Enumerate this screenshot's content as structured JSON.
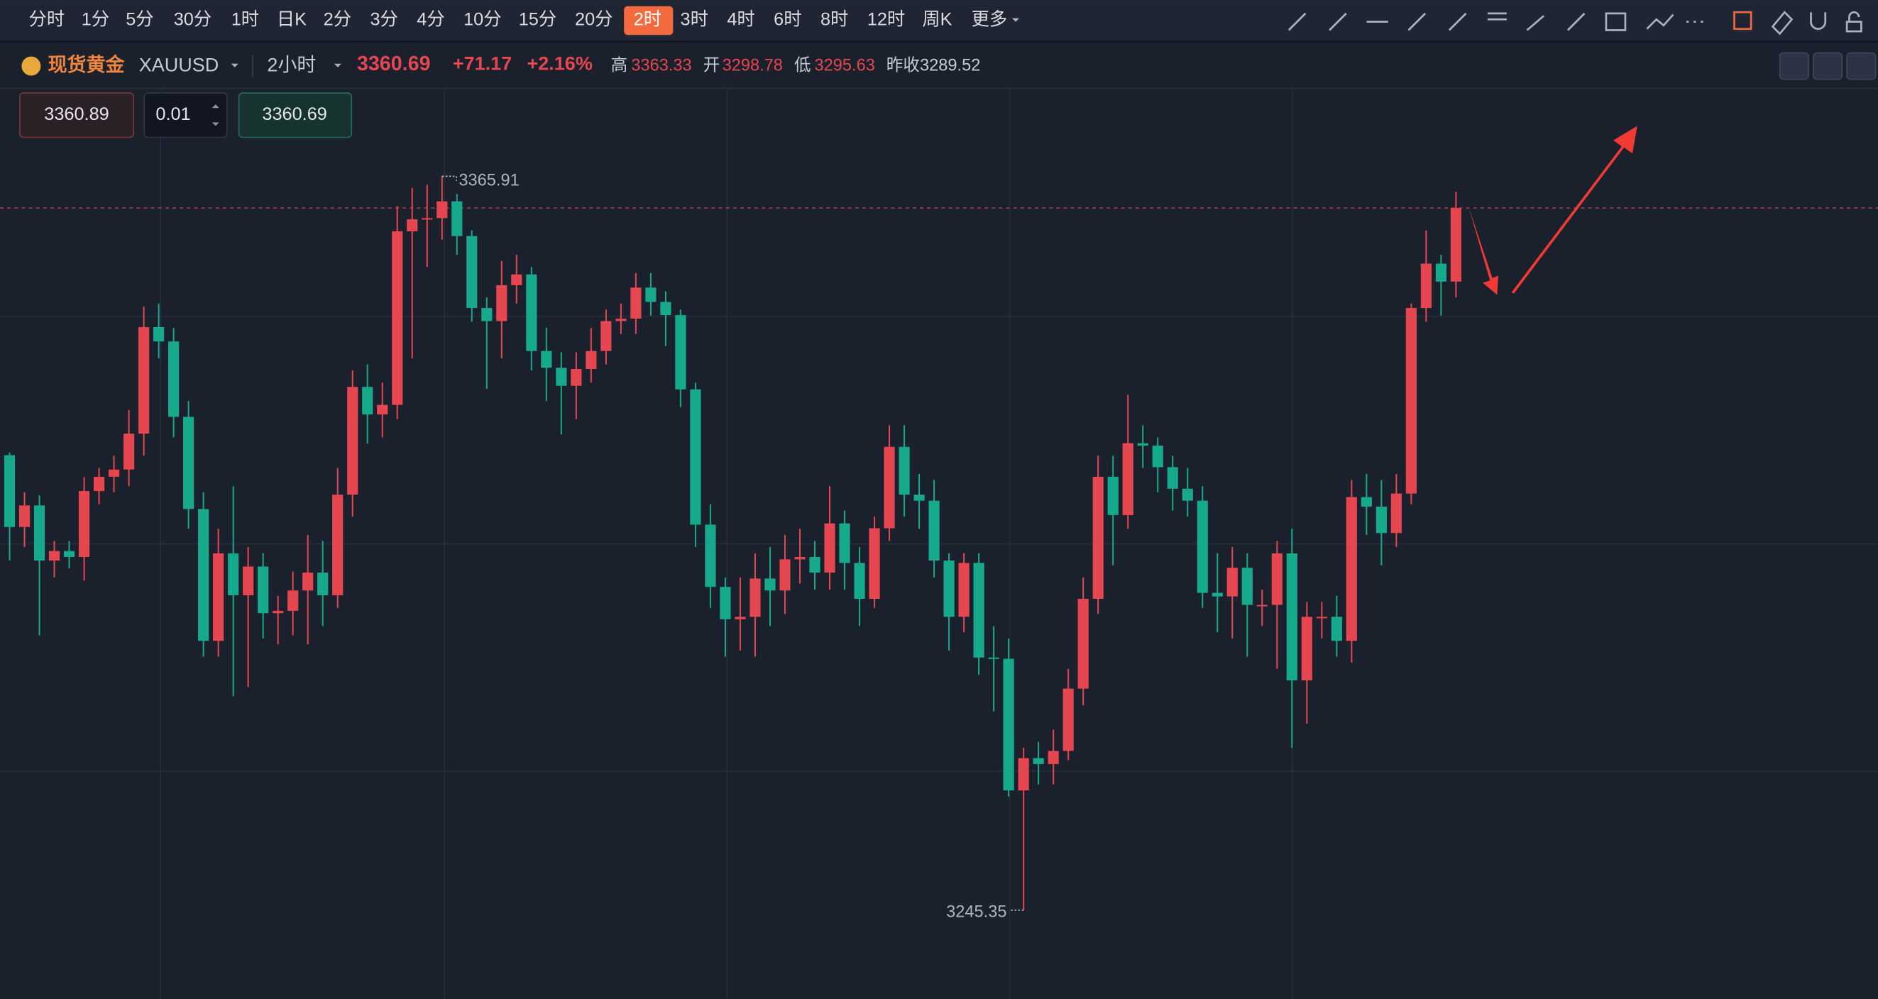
{
  "toolbar": {
    "intervals": [
      "分时",
      "1分",
      "5分",
      "30分",
      "1时",
      "日K",
      "2分",
      "3分",
      "4分",
      "10分",
      "15分",
      "20分",
      "2时",
      "3时",
      "4时",
      "6时",
      "8时",
      "12时",
      "周K"
    ],
    "active": 12,
    "more": "更多"
  },
  "header": {
    "name": "现货黄金",
    "symbol": "XAUUSD",
    "period": "2小时",
    "price": "3360.69",
    "change": "+71.17",
    "change_pct": "+2.16%",
    "high_label": "高",
    "high": "3363.33",
    "open_label": "开",
    "open": "3298.78",
    "low_label": "低",
    "low": "3295.63",
    "prev_label": "昨收",
    "prev": "3289.52"
  },
  "order": {
    "sell": "3360.89",
    "lots": "0.01",
    "buy": "3360.69"
  },
  "chart_data": {
    "type": "candlestick",
    "up_color": "#e5464f",
    "down_color": "#17a98b",
    "ylim": [
      3230.8,
      3380.46
    ],
    "open": [
      3320.09,
      3308.29,
      3311.83,
      3302.78,
      3304.35,
      3303.37,
      3314.19,
      3316.55,
      3317.73,
      3323.63,
      3341.13,
      3338.77,
      3326.38,
      3311.24,
      3289.6,
      3303.96,
      3297.08,
      3301.8,
      3294.13,
      3294.52,
      3297.86,
      3300.81,
      3297.08,
      3313.6,
      3331.3,
      3326.77,
      3328.35,
      3356.86,
      3358.83,
      3359.03,
      3361.78,
      3356.08,
      3344.27,
      3342.11,
      3348.01,
      3349.78,
      3337.2,
      3334.44,
      3331.49,
      3334.25,
      3337.2,
      3342.11,
      3342.51,
      3347.62,
      3345.26,
      3343.1,
      3330.9,
      3308.68,
      3298.45,
      3293.14,
      3293.54,
      3299.83,
      3297.86,
      3302.98,
      3303.37,
      3300.81,
      3308.88,
      3302.39,
      3296.49,
      3308.09,
      3321.46,
      3313.6,
      3312.61,
      3302.78,
      3293.54,
      3302.39,
      3286.85,
      3286.65,
      3265.02,
      3270.33,
      3269.35,
      3271.51,
      3281.74,
      3296.49,
      3316.55,
      3310.25,
      3322.05,
      3321.66,
      3318.12,
      3314.58,
      3312.61,
      3297.47,
      3296.88,
      3301.6,
      3295.5,
      3295.5,
      3303.96,
      3283.11,
      3293.54,
      3293.54,
      3289.6,
      3313.2,
      3311.63,
      3307.3,
      3313.79,
      3344.27,
      3351.55,
      3348.6
    ],
    "high": [
      3320.5,
      3314.0,
      3313.5,
      3306.0,
      3306.0,
      3316.5,
      3318.0,
      3320.0,
      3327.5,
      3344.5,
      3345.0,
      3341.0,
      3329.0,
      3314.0,
      3308.0,
      3315.0,
      3305.0,
      3304.0,
      3297.0,
      3301.0,
      3307.0,
      3306.0,
      3318.0,
      3334.0,
      3335.0,
      3332.0,
      3361.0,
      3364.0,
      3364.5,
      3365.91,
      3363.0,
      3357.0,
      3346.0,
      3352.0,
      3353.0,
      3351.0,
      3341.0,
      3337.0,
      3337.0,
      3341.0,
      3344.0,
      3345.0,
      3350.0,
      3350.0,
      3347.0,
      3344.0,
      3332.0,
      3312.0,
      3300.0,
      3300.0,
      3304.0,
      3305.0,
      3307.0,
      3308.0,
      3306.0,
      3315.0,
      3311.0,
      3305.0,
      3310.0,
      3325.0,
      3325.0,
      3317.0,
      3316.0,
      3304.0,
      3304.0,
      3304.0,
      3292.0,
      3290.0,
      3272.0,
      3273.0,
      3275.0,
      3285.0,
      3300.0,
      3320.0,
      3320.0,
      3330.0,
      3325.0,
      3323.0,
      3320.0,
      3318.0,
      3315.0,
      3304.0,
      3305.0,
      3304.0,
      3298.0,
      3306.0,
      3308.0,
      3296.0,
      3296.0,
      3297.0,
      3316.0,
      3317.0,
      3316.0,
      3317.0,
      3345.0,
      3357.0,
      3353.0,
      3363.33
    ],
    "low": [
      3302.8,
      3305.0,
      3290.5,
      3300.0,
      3301.5,
      3299.5,
      3312.0,
      3314.0,
      3315.0,
      3320.0,
      3336.0,
      3323.0,
      3308.0,
      3287.0,
      3287.0,
      3280.5,
      3282.0,
      3290.0,
      3289.0,
      3290.5,
      3289.0,
      3292.0,
      3295.0,
      3310.0,
      3322.0,
      3323.0,
      3326.0,
      3336.0,
      3351.0,
      3355.5,
      3353.0,
      3342.0,
      3331.0,
      3336.0,
      3345.0,
      3334.0,
      3329.0,
      3323.5,
      3326.0,
      3332.0,
      3335.0,
      3340.0,
      3340.0,
      3343.0,
      3338.0,
      3328.0,
      3305.0,
      3295.0,
      3287.0,
      3288.0,
      3287.0,
      3292.0,
      3294.0,
      3299.0,
      3298.0,
      3298.0,
      3298.0,
      3292.0,
      3295.0,
      3306.0,
      3310.0,
      3308.0,
      3300.0,
      3288.0,
      3291.0,
      3284.0,
      3278.0,
      3264.0,
      3245.35,
      3266.0,
      3266.0,
      3270.0,
      3279.0,
      3294.0,
      3302.0,
      3308.0,
      3318.0,
      3314.0,
      3311.0,
      3310.0,
      3295.0,
      3291.0,
      3290.0,
      3287.0,
      3292.0,
      3285.0,
      3272.0,
      3276.0,
      3290.0,
      3287.0,
      3286.0,
      3307.0,
      3302.0,
      3305.0,
      3312.0,
      3342.0,
      3343.0,
      3346.0
    ],
    "close": [
      3308.29,
      3311.83,
      3302.78,
      3304.35,
      3303.37,
      3314.19,
      3316.55,
      3317.73,
      3323.63,
      3341.13,
      3338.77,
      3326.38,
      3311.24,
      3289.6,
      3303.96,
      3297.08,
      3301.8,
      3294.13,
      3294.52,
      3297.86,
      3300.81,
      3297.08,
      3313.6,
      3331.3,
      3326.77,
      3328.35,
      3356.86,
      3358.83,
      3359.03,
      3361.78,
      3356.08,
      3344.27,
      3342.11,
      3348.01,
      3349.78,
      3337.2,
      3334.44,
      3331.49,
      3334.25,
      3337.2,
      3342.11,
      3342.51,
      3347.62,
      3345.26,
      3343.1,
      3330.9,
      3308.68,
      3298.45,
      3293.14,
      3293.54,
      3299.83,
      3297.86,
      3302.98,
      3303.37,
      3300.81,
      3308.88,
      3302.39,
      3296.49,
      3308.09,
      3321.46,
      3313.6,
      3312.61,
      3302.78,
      3293.54,
      3302.39,
      3286.85,
      3286.65,
      3265.02,
      3270.33,
      3269.35,
      3271.51,
      3281.74,
      3296.49,
      3316.55,
      3310.25,
      3322.05,
      3321.66,
      3318.12,
      3314.58,
      3312.61,
      3297.47,
      3296.88,
      3301.6,
      3295.5,
      3295.5,
      3303.96,
      3283.11,
      3293.54,
      3293.54,
      3289.6,
      3313.2,
      3311.63,
      3307.3,
      3313.79,
      3344.27,
      3351.55,
      3348.6,
      3360.69
    ],
    "max_marker": {
      "index": 29,
      "value": 3365.91,
      "label": "3365.91"
    },
    "min_marker": {
      "index": 68,
      "value": 3245.35,
      "label": "3245.35"
    },
    "last_price": 3360.69
  }
}
